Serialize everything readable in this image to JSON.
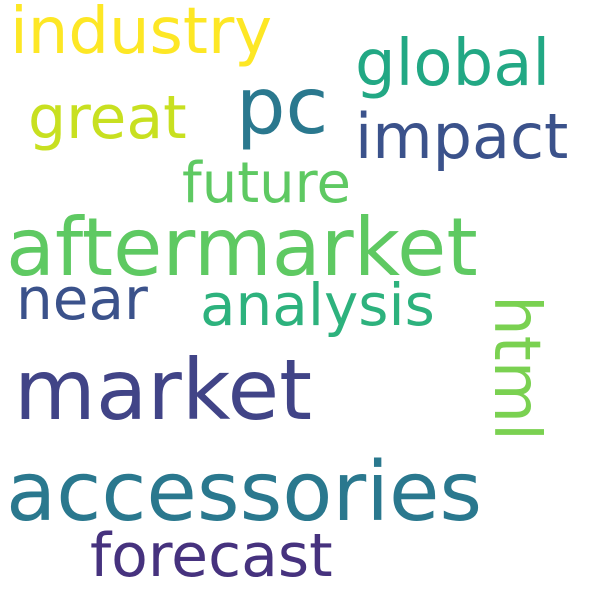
{
  "words": [
    {
      "key": "industry",
      "text": "industry",
      "color": "#fde725"
    },
    {
      "key": "pc",
      "text": "pc",
      "color": "#2a788e"
    },
    {
      "key": "global",
      "text": "global",
      "color": "#22a884"
    },
    {
      "key": "great",
      "text": "great",
      "color": "#c8e020"
    },
    {
      "key": "impact",
      "text": "impact",
      "color": "#3b528b"
    },
    {
      "key": "future",
      "text": "future",
      "color": "#5ec962"
    },
    {
      "key": "aftermarket",
      "text": "aftermarket",
      "color": "#5ec962"
    },
    {
      "key": "near",
      "text": "near",
      "color": "#3b528b"
    },
    {
      "key": "analysis",
      "text": "analysis",
      "color": "#2db27d"
    },
    {
      "key": "market",
      "text": "market",
      "color": "#414487"
    },
    {
      "key": "accessories",
      "text": "accessories",
      "color": "#2a788e"
    },
    {
      "key": "forecast",
      "text": "forecast",
      "color": "#46327e"
    },
    {
      "key": "html",
      "text": "html",
      "color": "#7ad151"
    }
  ]
}
